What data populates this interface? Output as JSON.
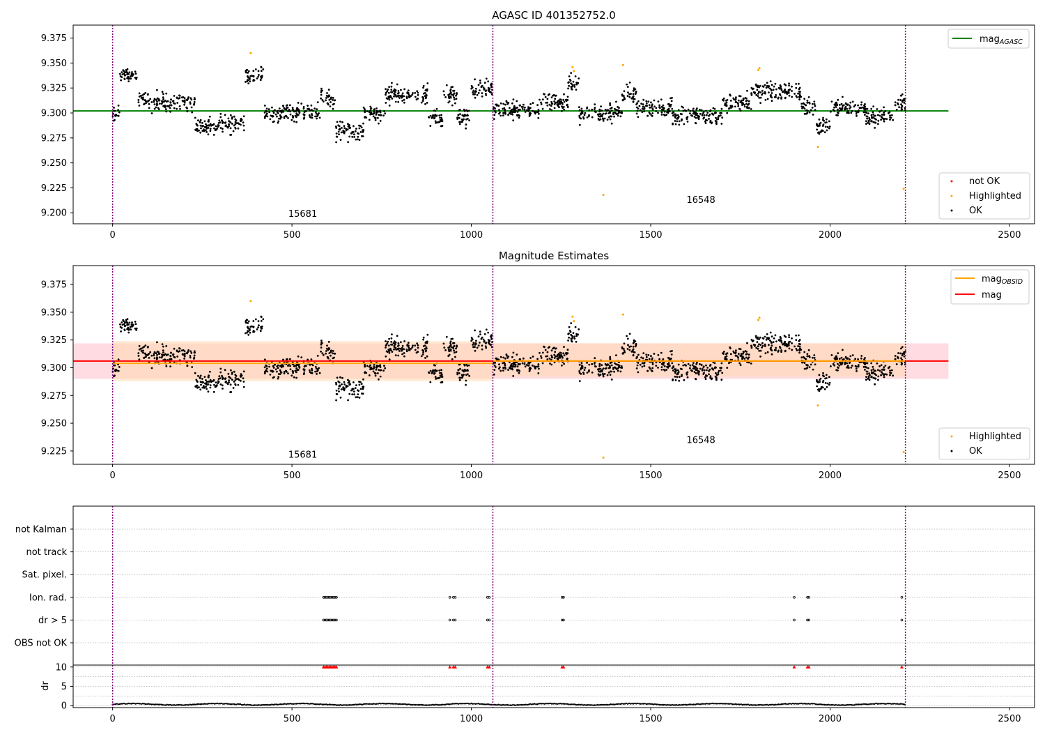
{
  "chart_data": [
    {
      "type": "scatter",
      "title": "AGASC ID 401352752.0",
      "xlim": [
        -110,
        2570
      ],
      "ylim": [
        9.189,
        9.388
      ],
      "xticks": [
        0,
        500,
        1000,
        1500,
        2000,
        2500
      ],
      "yticks": [
        9.2,
        9.225,
        9.25,
        9.275,
        9.3,
        9.325,
        9.35,
        9.375
      ],
      "xtick_labels": [
        "0",
        "500",
        "1000",
        "1500",
        "2000",
        "2500"
      ],
      "ytick_labels": [
        "9.200",
        "9.225",
        "9.250",
        "9.275",
        "9.300",
        "9.325",
        "9.350",
        "9.375"
      ],
      "vlines": [
        0,
        1060,
        2210
      ],
      "hlines": [
        {
          "name": "mag_AGASC",
          "y": 9.302,
          "x": [
            -110,
            2330
          ],
          "color": "#008000"
        }
      ],
      "annotations": [
        {
          "text": "15681",
          "x": 530,
          "y": 9.196
        },
        {
          "text": "16548",
          "x": 1640,
          "y": 9.21
        }
      ],
      "series": [
        {
          "name": "not OK",
          "color": "#ff0000",
          "points": []
        },
        {
          "name": "Highlighted",
          "color": "#ffa500",
          "points": [
            [
              385,
              9.36
            ],
            [
              1282,
              9.346
            ],
            [
              1286,
              9.342
            ],
            [
              1368,
              9.218
            ],
            [
              1423,
              9.348
            ],
            [
              1800,
              9.343
            ],
            [
              1803,
              9.345
            ],
            [
              1966,
              9.266
            ],
            [
              2205,
              9.224
            ]
          ]
        },
        {
          "name": "OK",
          "color": "#000000"
        }
      ],
      "legend_upper": [
        {
          "label": "mag",
          "sub": "AGASC",
          "color": "#008000"
        }
      ],
      "legend_lower": [
        {
          "label": "not OK",
          "color": "#ff0000"
        },
        {
          "label": "Highlighted",
          "color": "#ffa500"
        },
        {
          "label": "OK",
          "color": "#000000"
        }
      ]
    },
    {
      "type": "scatter",
      "title": "Magnitude Estimates",
      "xlim": [
        -110,
        2570
      ],
      "ylim": [
        9.213,
        9.392
      ],
      "xticks": [
        0,
        500,
        1000,
        1500,
        2000,
        2500
      ],
      "yticks": [
        9.225,
        9.25,
        9.275,
        9.3,
        9.325,
        9.35,
        9.375
      ],
      "xtick_labels": [
        "0",
        "500",
        "1000",
        "1500",
        "2000",
        "2500"
      ],
      "ytick_labels": [
        "9.225",
        "9.250",
        "9.275",
        "9.300",
        "9.325",
        "9.350",
        "9.375"
      ],
      "vlines": [
        0,
        1060,
        2210
      ],
      "bands": [
        {
          "name": "mag",
          "x": [
            -110,
            2330
          ],
          "y": [
            9.29,
            9.322
          ],
          "color": "#ffc0c8"
        },
        {
          "name": "mag_OBSID",
          "x": [
            0,
            1060
          ],
          "y": [
            9.288,
            9.324
          ],
          "color": "#ffd8b0"
        },
        {
          "name": "mag_OBSID",
          "x": [
            1060,
            2210
          ],
          "y": [
            9.292,
            9.322
          ],
          "color": "#ffd8b0"
        }
      ],
      "hlines": [
        {
          "name": "mag",
          "y": 9.306,
          "x": [
            -110,
            2330
          ],
          "color": "#ff0000"
        },
        {
          "name": "mag_OBSID",
          "y": 9.304,
          "x": [
            0,
            1060
          ],
          "color": "#ffa500"
        },
        {
          "name": "mag_OBSID",
          "y": 9.306,
          "x": [
            1060,
            2210
          ],
          "color": "#ffa500"
        }
      ],
      "annotations": [
        {
          "text": "15681",
          "x": 530,
          "y": 9.219
        },
        {
          "text": "16548",
          "x": 1640,
          "y": 9.232
        }
      ],
      "series": [
        {
          "name": "Highlighted",
          "color": "#ffa500",
          "points": [
            [
              385,
              9.36
            ],
            [
              1282,
              9.346
            ],
            [
              1286,
              9.342
            ],
            [
              1368,
              9.219
            ],
            [
              1423,
              9.348
            ],
            [
              1800,
              9.343
            ],
            [
              1803,
              9.345
            ],
            [
              1966,
              9.266
            ],
            [
              2205,
              9.224
            ]
          ]
        },
        {
          "name": "OK",
          "color": "#000000"
        }
      ],
      "legend_upper": [
        {
          "label": "mag",
          "sub": "OBSID",
          "color": "#ffa500"
        },
        {
          "label": "mag",
          "sub": "",
          "color": "#ff0000"
        }
      ],
      "legend_lower": [
        {
          "label": "Highlighted",
          "color": "#ffa500"
        },
        {
          "label": "OK",
          "color": "#000000"
        }
      ]
    },
    {
      "type": "scatter",
      "title": "",
      "xlim": [
        -110,
        2570
      ],
      "flag_rows": [
        "not Kalman",
        "not track",
        "Sat. pixel.",
        "Ion. rad.",
        "dr > 5",
        "OBS not OK"
      ],
      "flag_points": {
        "Ion. rad.": [
          588,
          592,
          596,
          600,
          604,
          608,
          612,
          616,
          620,
          624,
          940,
          950,
          955,
          1045,
          1050,
          1253,
          1257,
          1900,
          1937,
          1941,
          2200
        ],
        "dr > 5": [
          588,
          592,
          596,
          600,
          604,
          608,
          612,
          616,
          620,
          624,
          940,
          950,
          955,
          1045,
          1050,
          1253,
          1257,
          1900,
          1937,
          1941,
          2200
        ]
      }
    },
    {
      "type": "scatter",
      "title": "",
      "xlim": [
        -110,
        2570
      ],
      "ylim": [
        -0.5,
        10.5
      ],
      "ylabel": "dr",
      "xticks": [
        0,
        500,
        1000,
        1500,
        2000,
        2500
      ],
      "yticks": [
        0,
        5,
        10
      ],
      "xtick_labels": [
        "0",
        "500",
        "1000",
        "1500",
        "2000",
        "2500"
      ],
      "ytick_labels": [
        "0",
        "5",
        "10"
      ],
      "vlines": [
        0,
        1060,
        2210
      ],
      "clipped_points": {
        "color": "#ff0000",
        "y": 10,
        "x": [
          588,
          592,
          596,
          600,
          604,
          608,
          612,
          616,
          620,
          624,
          940,
          950,
          955,
          1045,
          1050,
          1253,
          1257,
          1900,
          1937,
          1941,
          2200
        ]
      },
      "dr_range": [
        0.0,
        1.1
      ]
    }
  ]
}
